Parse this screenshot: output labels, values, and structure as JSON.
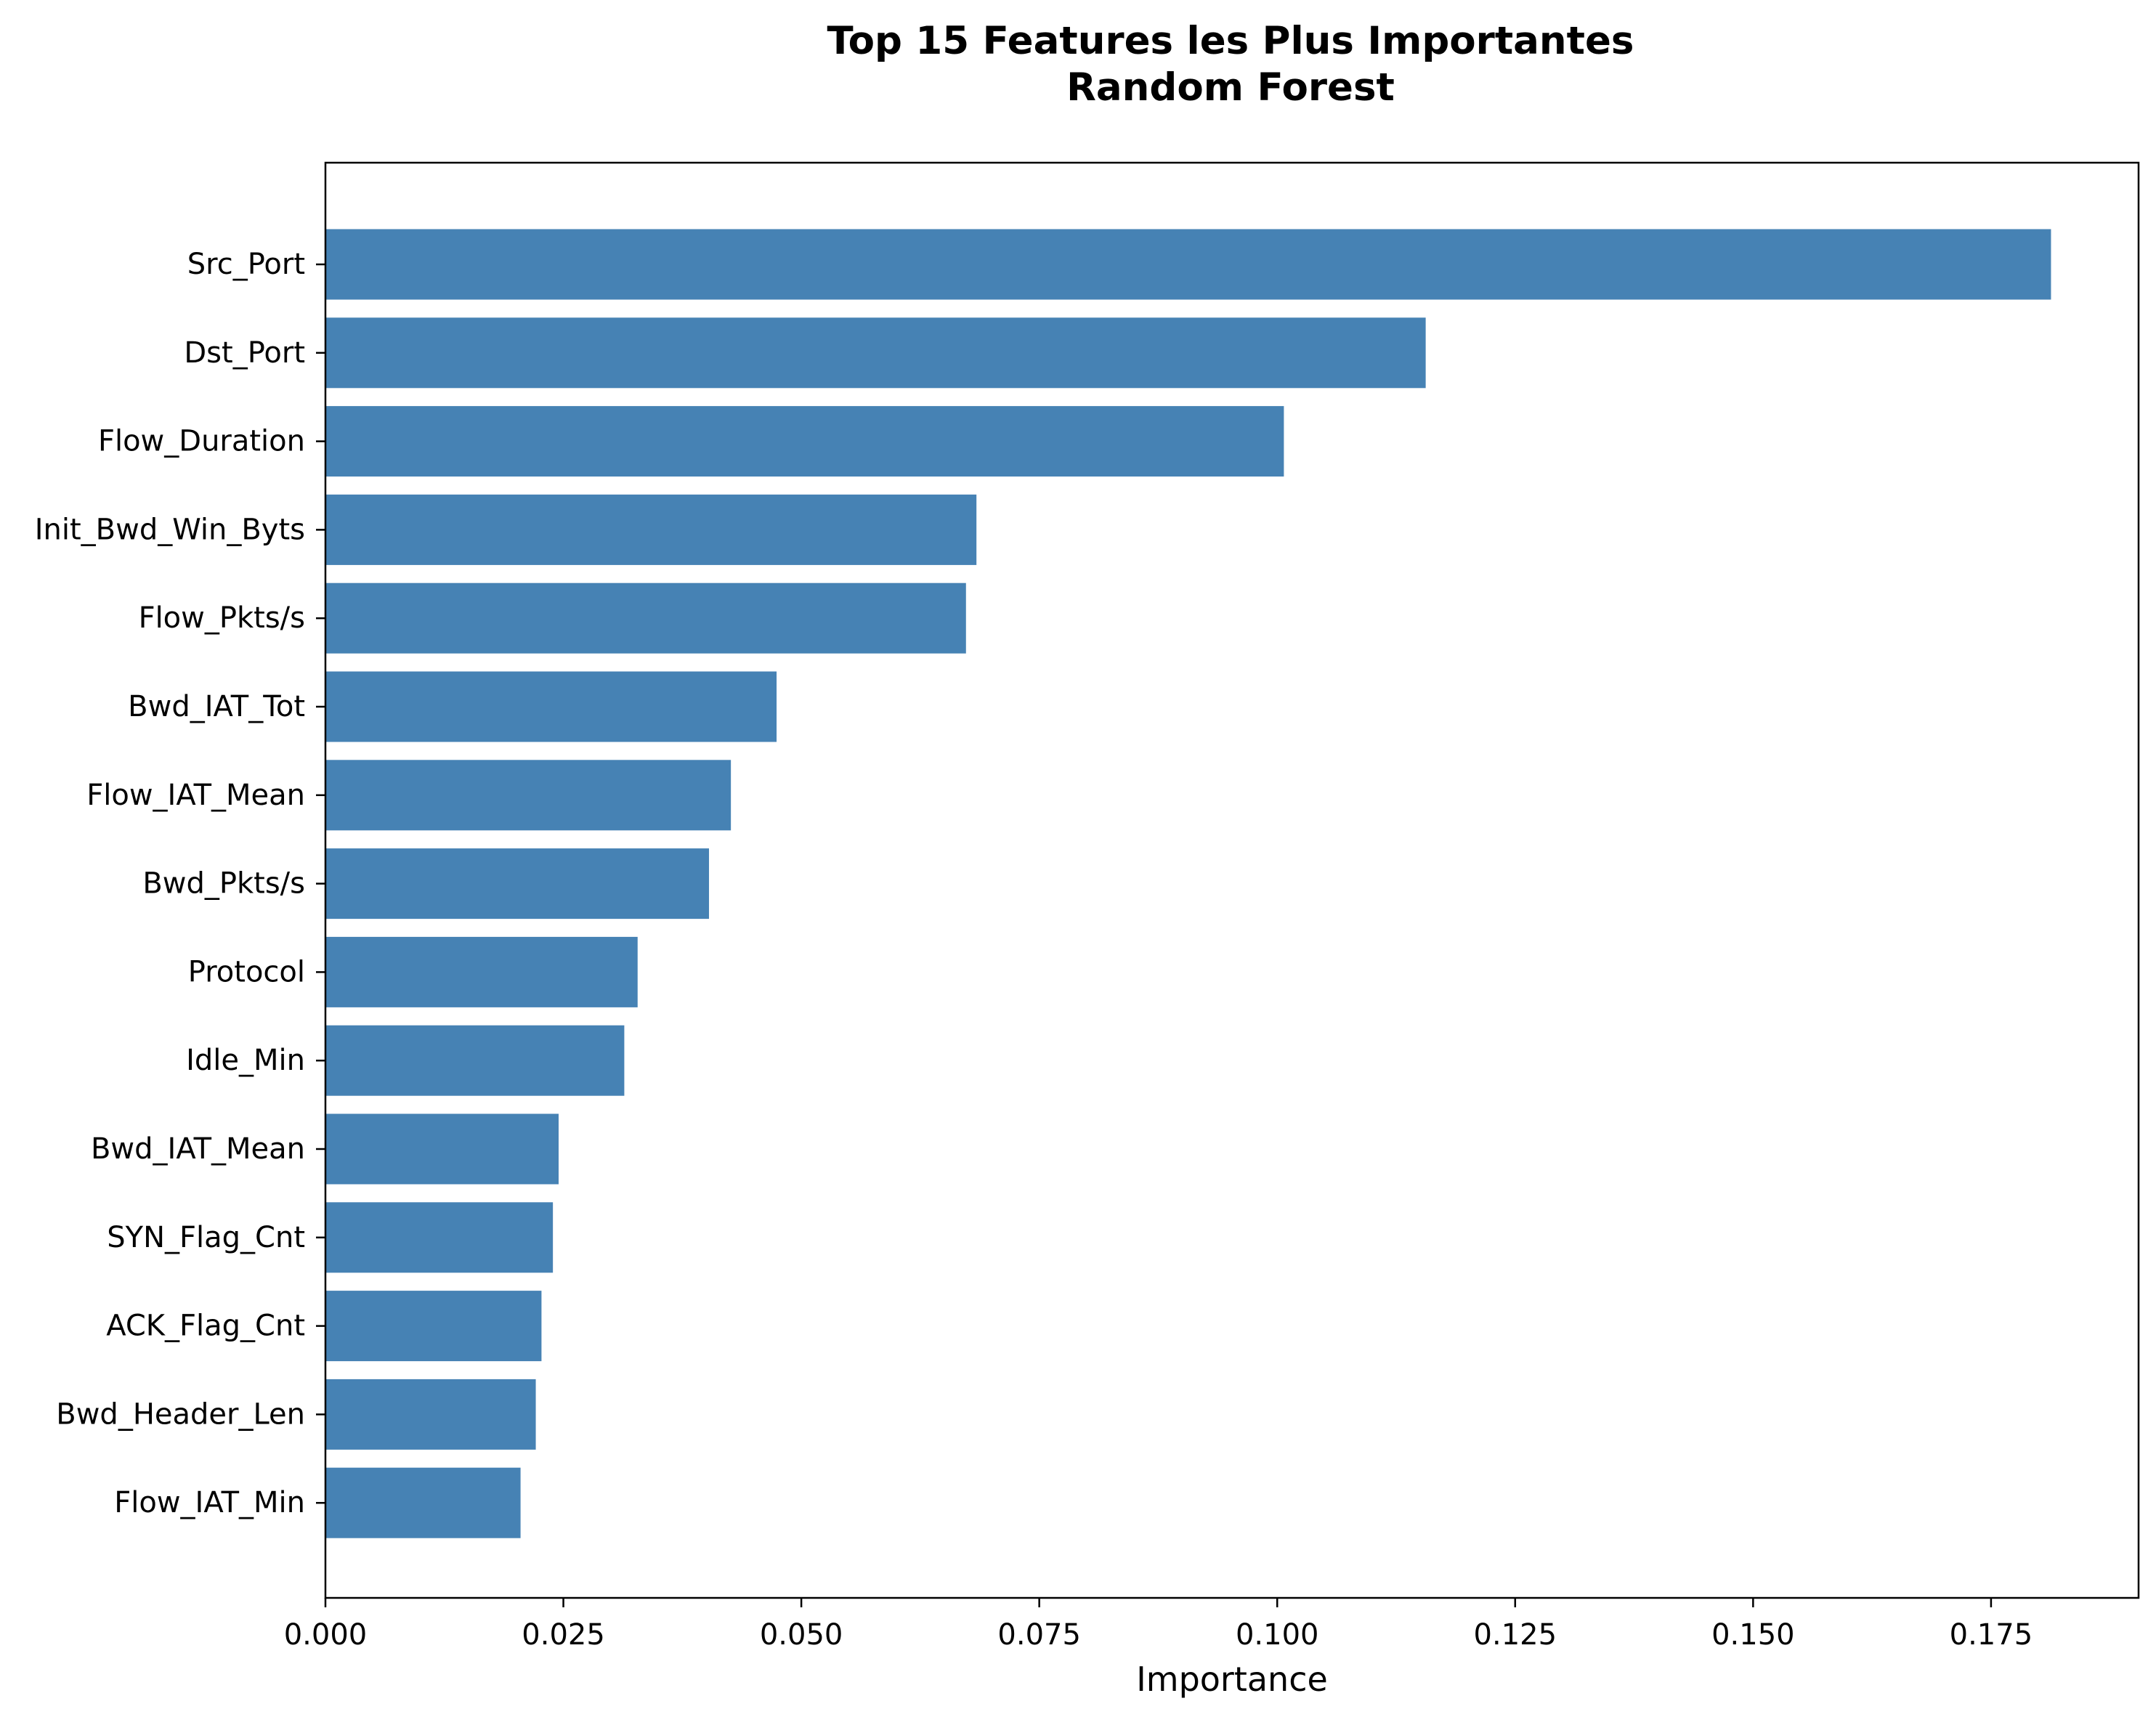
{
  "chart_data": {
    "type": "bar",
    "orientation": "horizontal",
    "title_line1": "Top 15 Features les Plus Importantes",
    "title_line2": "Random Forest",
    "xlabel": "Importance",
    "ylabel": "",
    "xlim": [
      0,
      0.1905
    ],
    "xticks": [
      "0.000",
      "0.025",
      "0.050",
      "0.075",
      "0.100",
      "0.125",
      "0.150",
      "0.175"
    ],
    "xtick_values": [
      0,
      0.025,
      0.05,
      0.075,
      0.1,
      0.125,
      0.15,
      0.175
    ],
    "grid": false,
    "legend": "none",
    "bar_color": "#4682b4",
    "categories": [
      "Src_Port",
      "Dst_Port",
      "Flow_Duration",
      "Init_Bwd_Win_Byts",
      "Flow_Pkts/s",
      "Bwd_IAT_Tot",
      "Flow_IAT_Mean",
      "Bwd_Pkts/s",
      "Protocol",
      "Idle_Min",
      "Bwd_IAT_Mean",
      "SYN_Flag_Cnt",
      "ACK_Flag_Cnt",
      "Bwd_Header_Len",
      "Flow_IAT_Min"
    ],
    "values": [
      0.1813,
      0.1156,
      0.1007,
      0.0684,
      0.0673,
      0.0474,
      0.0426,
      0.0403,
      0.0328,
      0.0314,
      0.0245,
      0.0239,
      0.0227,
      0.0221,
      0.0205
    ]
  }
}
